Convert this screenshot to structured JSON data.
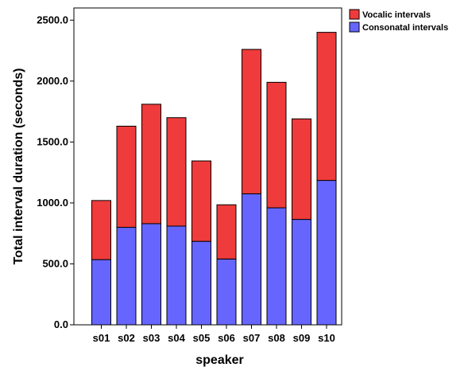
{
  "chart_data": {
    "type": "bar",
    "stacked": true,
    "categories": [
      "s01",
      "s02",
      "s03",
      "s04",
      "s05",
      "s06",
      "s07",
      "s08",
      "s09",
      "s10"
    ],
    "series": [
      {
        "name": "Consonatal intervals",
        "color": "#6666ff",
        "values": [
          535,
          800,
          830,
          810,
          685,
          540,
          1075,
          960,
          865,
          1185
        ]
      },
      {
        "name": "Vocalic intervals",
        "color": "#ef3b3b",
        "values": [
          485,
          830,
          980,
          890,
          660,
          445,
          1185,
          1030,
          825,
          1215
        ]
      }
    ],
    "totals": [
      1020,
      1630,
      1810,
      1700,
      1345,
      985,
      2260,
      1990,
      1690,
      2400
    ],
    "xlabel": "speaker",
    "ylabel": "Total interval duration (seconds)",
    "ylim": [
      0,
      2600
    ],
    "yticks": [
      "0.0",
      "500.0",
      "1000.0",
      "1500.0",
      "2000.0",
      "2500.0"
    ],
    "ytick_values": [
      0,
      500,
      1000,
      1500,
      2000,
      2500
    ],
    "legend_position": "top-right",
    "grid": false
  }
}
